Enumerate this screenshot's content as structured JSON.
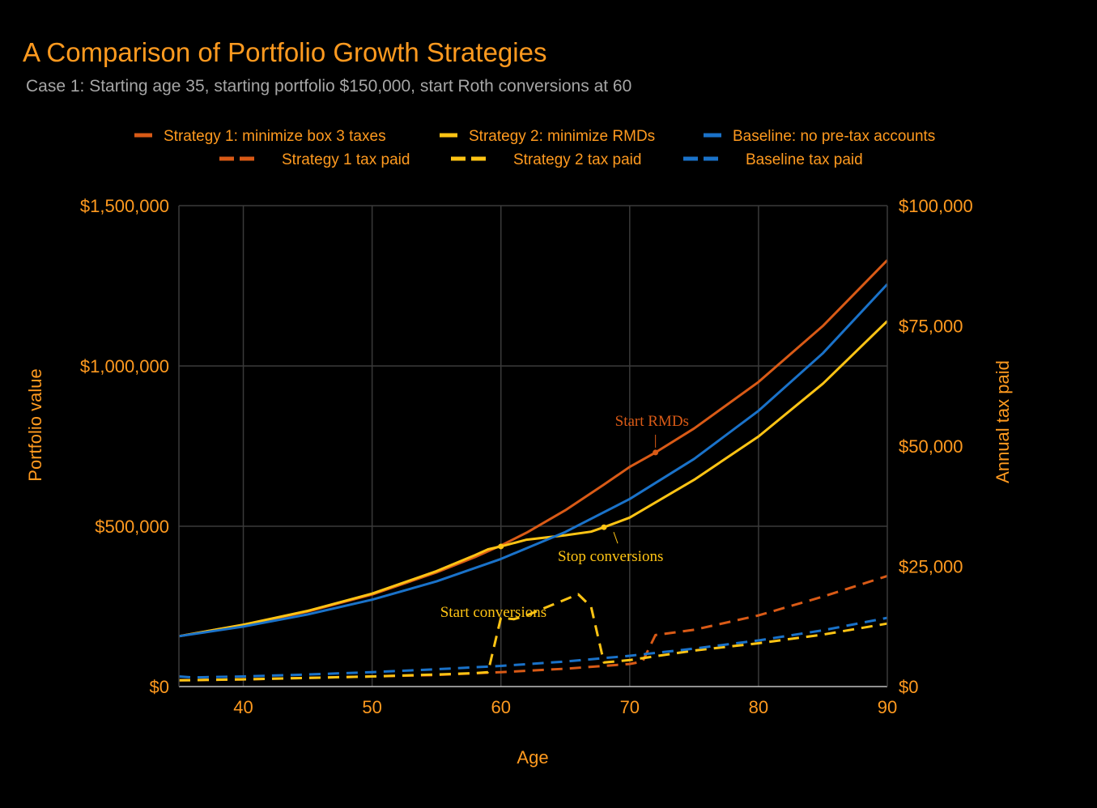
{
  "colors": {
    "accent": "#ff9a1f",
    "subtitle": "#a6a6a6",
    "strategy1": "#d95a16",
    "strategy2": "#ffc414",
    "baseline": "#1a72c9",
    "grid": "#3a3a3a",
    "axis": "#bfbfbf"
  },
  "chart_data": {
    "type": "line",
    "title": "A Comparison of Portfolio Growth Strategies",
    "subtitle": "Case 1: Starting age 35, starting portfolio $150,000, start Roth conversions at 60",
    "xlabel": "Age",
    "ylabel_left": "Portfolio value",
    "ylabel_right": "Annual tax paid",
    "xlim": [
      35,
      90
    ],
    "ylim_left": [
      0,
      1500000
    ],
    "ylim_right": [
      0,
      100000
    ],
    "x_ticks": [
      40,
      50,
      60,
      70,
      80,
      90
    ],
    "x_tick_labels": [
      "40",
      "50",
      "60",
      "70",
      "80",
      "90"
    ],
    "y_left_ticks": [
      0,
      500000,
      1000000,
      1500000
    ],
    "y_left_tick_labels": [
      "$0",
      "$500,000",
      "$1,000,000",
      "$1,500,000"
    ],
    "y_right_ticks": [
      0,
      25000,
      50000,
      75000,
      100000
    ],
    "y_right_tick_labels": [
      "$0",
      "$25,000",
      "$50,000",
      "$75,000",
      "$100,000"
    ],
    "grid": true,
    "legend_position": "top-center",
    "series": [
      {
        "key": "s1_value",
        "name": "Strategy 1: minimize box 3 taxes",
        "axis": "left",
        "color_key": "strategy1",
        "dash": false,
        "x": [
          35,
          40,
          45,
          50,
          55,
          58,
          60,
          62,
          65,
          68,
          70,
          72,
          75,
          80,
          85,
          90
        ],
        "values": [
          157000,
          192000,
          234000,
          287000,
          356000,
          404000,
          440000,
          480000,
          550000,
          630000,
          685000,
          730000,
          805000,
          950000,
          1125000,
          1330000
        ]
      },
      {
        "key": "s2_value",
        "name": "Strategy 2: minimize RMDs",
        "axis": "left",
        "color_key": "strategy2",
        "dash": false,
        "x": [
          35,
          40,
          45,
          50,
          55,
          58,
          59,
          60,
          62,
          65,
          67,
          68,
          70,
          75,
          80,
          85,
          90
        ],
        "values": [
          157000,
          193000,
          236000,
          290000,
          360000,
          410000,
          428000,
          437000,
          458000,
          472000,
          483000,
          497000,
          527000,
          645000,
          780000,
          945000,
          1140000
        ]
      },
      {
        "key": "base_value",
        "name": "Baseline: no pre-tax accounts",
        "axis": "left",
        "color_key": "baseline",
        "dash": false,
        "x": [
          35,
          40,
          45,
          50,
          55,
          60,
          65,
          70,
          75,
          80,
          85,
          90
        ],
        "values": [
          157000,
          187000,
          225000,
          271000,
          328000,
          398000,
          482000,
          585000,
          710000,
          860000,
          1040000,
          1255000
        ]
      },
      {
        "key": "s1_tax",
        "name": "Strategy 1 tax paid",
        "axis": "right",
        "color_key": "strategy1",
        "dash": true,
        "x": [
          35,
          40,
          45,
          50,
          55,
          60,
          65,
          70,
          71,
          72,
          75,
          80,
          85,
          90
        ],
        "values": [
          1300,
          1500,
          1800,
          2100,
          2400,
          3000,
          3700,
          4700,
          5200,
          10700,
          11800,
          14800,
          18700,
          23000
        ]
      },
      {
        "key": "s2_tax",
        "name": "Strategy 2 tax paid",
        "axis": "right",
        "color_key": "strategy2",
        "dash": true,
        "x": [
          35,
          40,
          45,
          50,
          55,
          58,
          59,
          60,
          61,
          62,
          64,
          66,
          67,
          68,
          70,
          75,
          80,
          85,
          90
        ],
        "values": [
          1300,
          1500,
          1800,
          2100,
          2500,
          2800,
          3000,
          14300,
          14000,
          14800,
          17000,
          19200,
          16600,
          5000,
          5500,
          7500,
          9000,
          10800,
          13100
        ]
      },
      {
        "key": "base_tax",
        "name": "Baseline tax paid",
        "axis": "right",
        "color_key": "baseline",
        "dash": true,
        "x": [
          35,
          36,
          40,
          45,
          50,
          55,
          60,
          65,
          70,
          75,
          80,
          85,
          90
        ],
        "values": [
          2100,
          1900,
          2100,
          2500,
          3000,
          3600,
          4300,
          5200,
          6400,
          7900,
          9600,
          11700,
          14300
        ]
      }
    ],
    "annotations": [
      {
        "text": "Start RMDs",
        "x": 72,
        "y": 730000,
        "color_key": "strategy1"
      },
      {
        "text": "Stop conversions",
        "x": 68,
        "y": 497000,
        "color_key": "strategy2"
      },
      {
        "text": "Start conversions",
        "x": 60,
        "y": 437000,
        "color_key": "strategy2"
      }
    ]
  }
}
